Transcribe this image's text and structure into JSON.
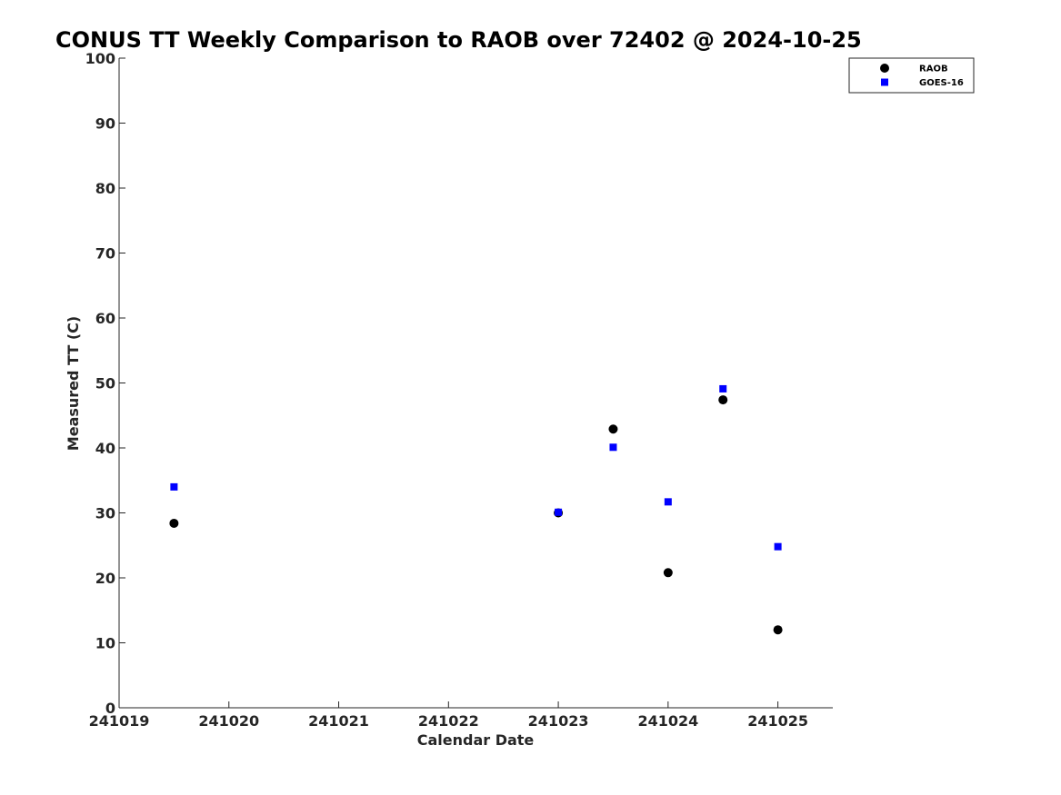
{
  "chart_data": {
    "type": "scatter",
    "title": "CONUS TT Weekly Comparison to RAOB over 72402 @ 2024-10-25",
    "xlabel": "Calendar Date",
    "ylabel": "Measured TT (C)",
    "xlim": [
      241019,
      241025.5
    ],
    "ylim": [
      0,
      100
    ],
    "x_ticks": [
      241019,
      241020,
      241021,
      241022,
      241023,
      241024,
      241025
    ],
    "x_tick_labels": [
      "241019",
      "241020",
      "241021",
      "241022",
      "241023",
      "241024",
      "241025"
    ],
    "y_ticks": [
      0,
      10,
      20,
      30,
      40,
      50,
      60,
      70,
      80,
      90,
      100
    ],
    "y_tick_labels": [
      "0",
      "10",
      "20",
      "30",
      "40",
      "50",
      "60",
      "70",
      "80",
      "90",
      "100"
    ],
    "grid": false,
    "legend_position": "top-right",
    "series": [
      {
        "name": "RAOB",
        "marker": "circle",
        "color": "#000000",
        "x": [
          241019.5,
          241023,
          241023.5,
          241024,
          241024.5,
          241025
        ],
        "y": [
          28.4,
          30.0,
          42.9,
          20.8,
          47.4,
          12.0
        ]
      },
      {
        "name": "GOES-16",
        "marker": "square",
        "color": "#0000ff",
        "x": [
          241019.5,
          241023,
          241023.5,
          241024,
          241024.5,
          241025
        ],
        "y": [
          34.0,
          30.1,
          40.1,
          31.7,
          49.1,
          24.8
        ]
      }
    ]
  }
}
